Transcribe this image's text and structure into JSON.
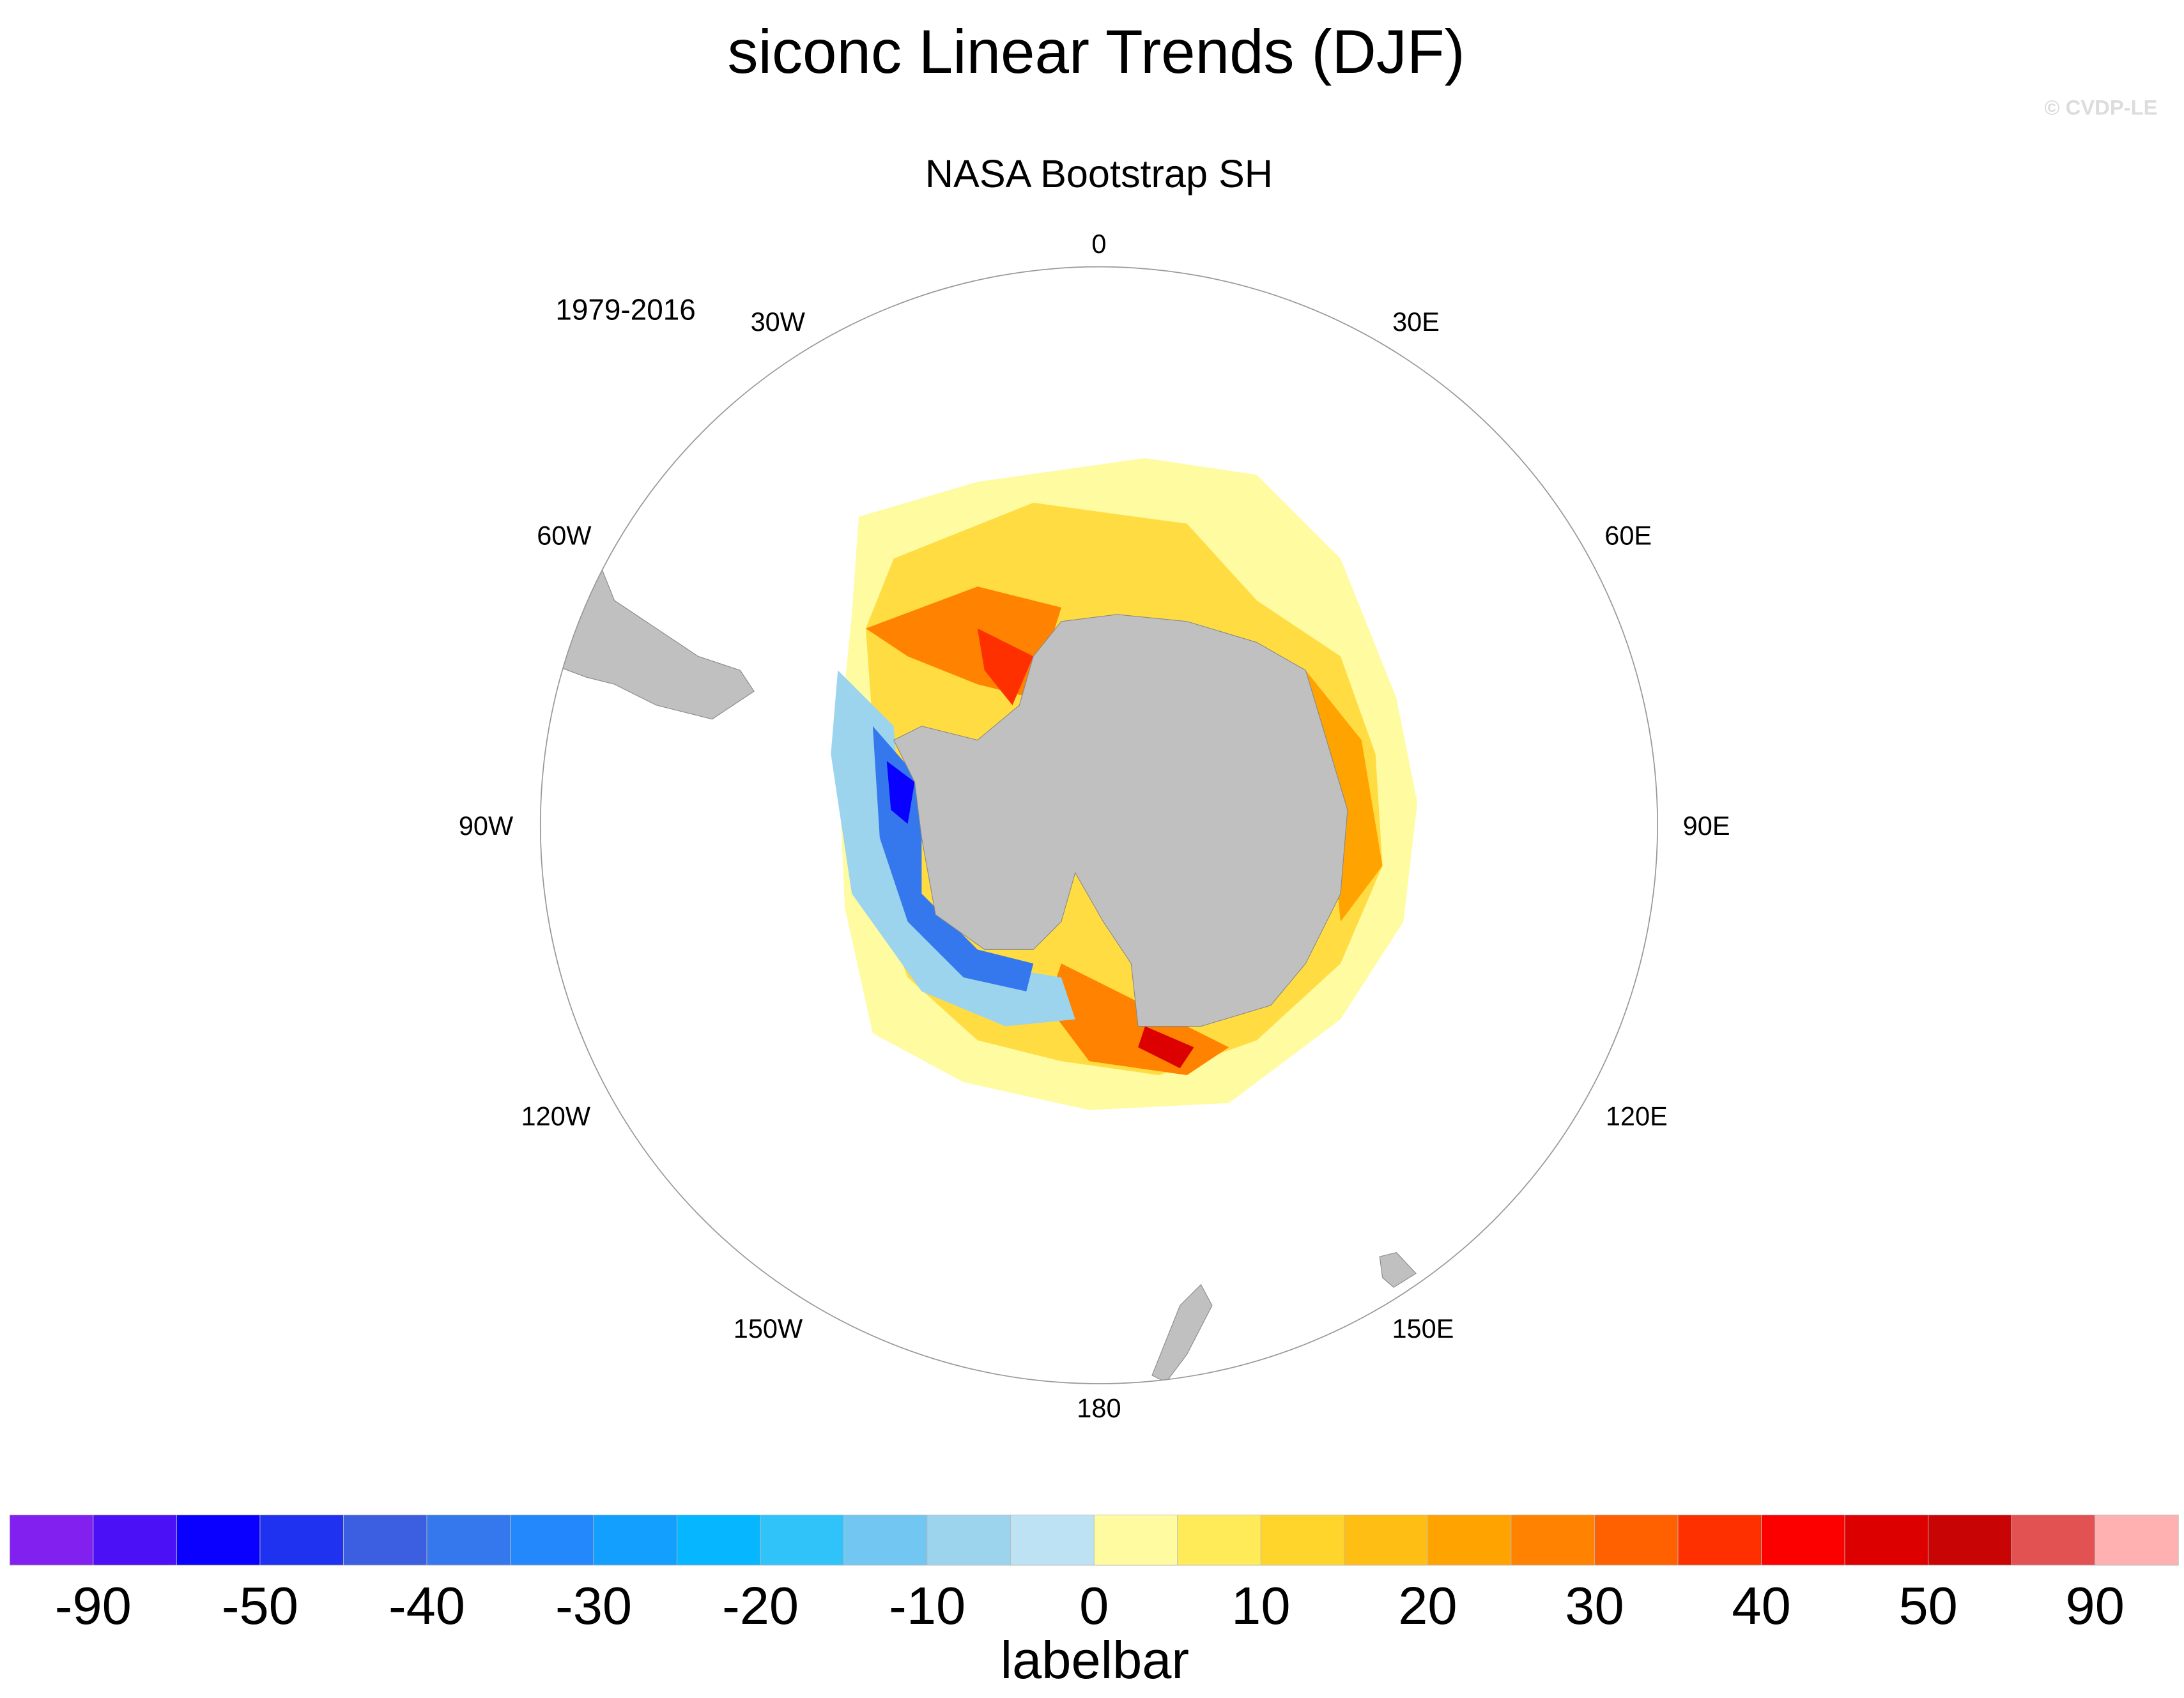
{
  "title": "siconc Linear Trends (DJF)",
  "copyright": "© CVDP-LE",
  "subtitle": "NASA Bootstrap SH",
  "period": "1979-2016",
  "map": {
    "projection": "south polar stereographic",
    "land_color": "#c0c0c0",
    "longitude_labels": {
      "lon_0": "0",
      "lon_30e": "30E",
      "lon_60e": "60E",
      "lon_90e": "90E",
      "lon_120e": "120E",
      "lon_150e": "150E",
      "lon_180": "180",
      "lon_150w": "150W",
      "lon_120w": "120W",
      "lon_90w": "90W",
      "lon_60w": "60W",
      "lon_30w": "30W"
    }
  },
  "colorbar": {
    "title": "labelbar",
    "colors": [
      "#8220f0",
      "#4b10f5",
      "#0a00ff",
      "#1e32f0",
      "#3c5fe1",
      "#3578ee",
      "#2288fc",
      "#129ffe",
      "#06b6fe",
      "#30c3fa",
      "#72c6f2",
      "#9cd4ee",
      "#bde2f4",
      "#fefba1",
      "#ffeb58",
      "#ffd42b",
      "#ffbe14",
      "#ffa300",
      "#ff8200",
      "#ff6100",
      "#ff3000",
      "#fc0000",
      "#dd0000",
      "#c80404",
      "#e35252",
      "#ffb1b1"
    ],
    "tick_labels": [
      "-90",
      "-50",
      "-40",
      "-30",
      "-20",
      "-10",
      "0",
      "10",
      "20",
      "30",
      "40",
      "50",
      "90"
    ]
  }
}
